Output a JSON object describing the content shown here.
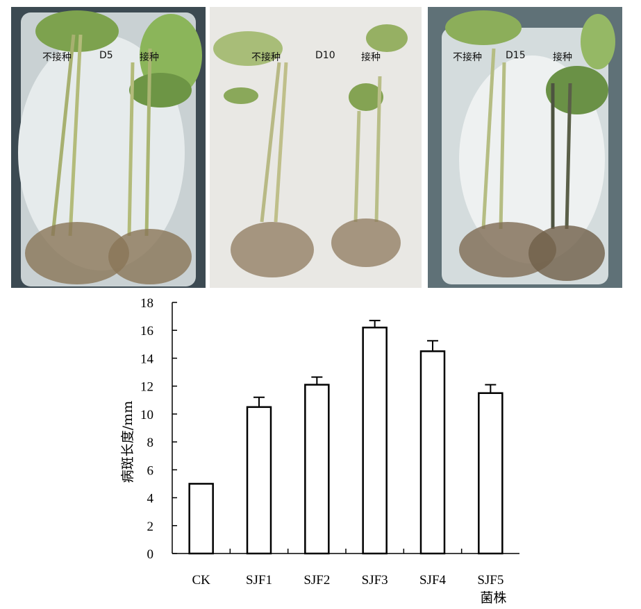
{
  "panels": [
    {
      "left_label": "不接种",
      "day_label": "D5",
      "right_label": "接种"
    },
    {
      "left_label": "不接种",
      "day_label": "D10",
      "right_label": "接种"
    },
    {
      "left_label": "不接种",
      "day_label": "D15",
      "right_label": "接种"
    }
  ],
  "chart_data": {
    "type": "bar",
    "categories": [
      "CK",
      "SJF1",
      "SJF2",
      "SJF3",
      "SJF4",
      "SJF5"
    ],
    "values": [
      5.0,
      10.5,
      12.1,
      16.2,
      14.5,
      11.5
    ],
    "errors": [
      0,
      0.7,
      0.55,
      0.5,
      0.75,
      0.6
    ],
    "xlabel": "菌株",
    "ylabel": "病斑长度/mm",
    "ylim": [
      0,
      18
    ],
    "yticks": [
      "0",
      "2",
      "4",
      "6",
      "8",
      "10",
      "12",
      "14",
      "16",
      "18"
    ],
    "grid": false,
    "bar_fill": "#ffffff",
    "bar_stroke": "#000000"
  }
}
